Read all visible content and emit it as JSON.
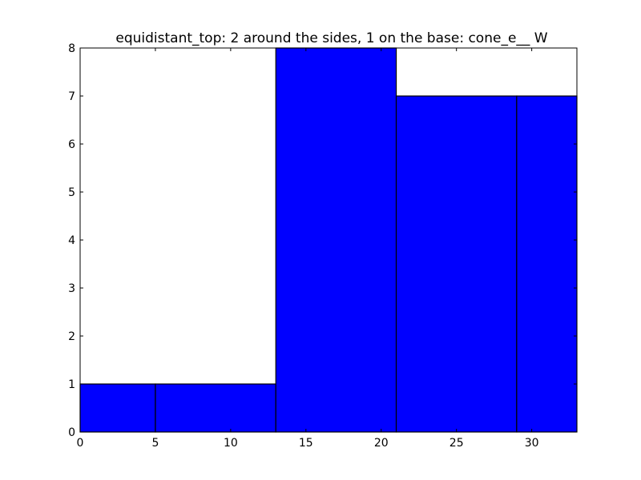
{
  "chart_data": {
    "type": "bar",
    "title": "equidistant_top: 2 around the sides, 1 on the base: cone_e__ W",
    "xlabel": "",
    "ylabel": "",
    "xlim": [
      0,
      33
    ],
    "ylim": [
      0,
      8
    ],
    "x_ticks": [
      0,
      5,
      10,
      15,
      20,
      25,
      30
    ],
    "y_ticks": [
      0,
      1,
      2,
      3,
      4,
      5,
      6,
      7,
      8
    ],
    "bars": [
      {
        "x_start": 0,
        "x_end": 5,
        "value": 1
      },
      {
        "x_start": 5,
        "x_end": 13,
        "value": 1
      },
      {
        "x_start": 13,
        "x_end": 21,
        "value": 8
      },
      {
        "x_start": 21,
        "x_end": 29,
        "value": 7
      },
      {
        "x_start": 29,
        "x_end": 33,
        "value": 7
      }
    ],
    "bar_color": "#0000ff",
    "edge_color": "#000000",
    "grid": false,
    "legend": "none"
  }
}
